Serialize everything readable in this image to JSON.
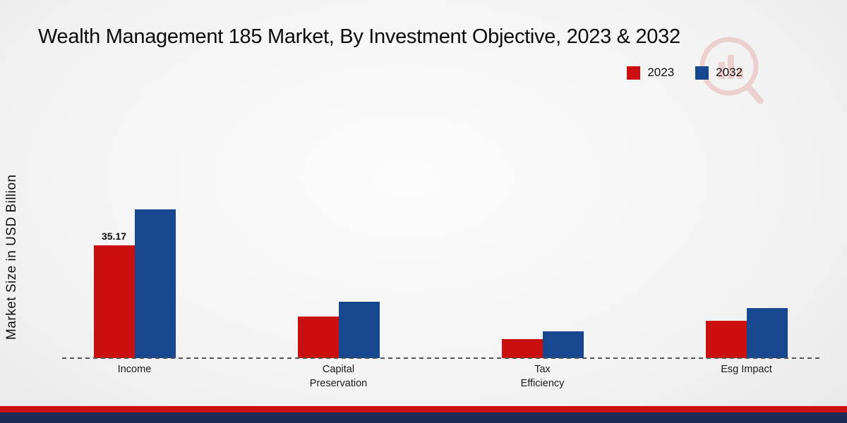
{
  "title": "Wealth Management 185 Market, By Investment Objective, 2023 & 2032",
  "ylabel": "Market Size in USD Billion",
  "legend": [
    {
      "label": "2023",
      "color": "#c90f0f"
    },
    {
      "label": "2032",
      "color": "#17488f"
    }
  ],
  "colors": {
    "series_2023": "#c90f0f",
    "series_2032": "#17488f",
    "footer_red": "#c90f0f",
    "footer_navy": "#1a2b57",
    "baseline": "#555555"
  },
  "chart_data": {
    "type": "bar",
    "categories": [
      "Income",
      "Capital Preservation",
      "Tax Efficiency",
      "Esg Impact"
    ],
    "series": [
      {
        "name": "2023",
        "color": "#c90f0f",
        "values": [
          35.17,
          12.9,
          5.9,
          11.6
        ]
      },
      {
        "name": "2032",
        "color": "#17488f",
        "values": [
          46.2,
          17.5,
          8.4,
          15.6
        ]
      }
    ],
    "value_labels": [
      {
        "series": "2023",
        "category": "Income",
        "text": "35.17"
      }
    ],
    "title": "Wealth Management 185 Market, By Investment Objective, 2023 & 2032",
    "xlabel": "",
    "ylabel": "Market Size in USD Billion",
    "ylim": [
      0,
      50
    ],
    "grid": false,
    "baseline_style": "dashed",
    "legend_position": "top-right"
  }
}
